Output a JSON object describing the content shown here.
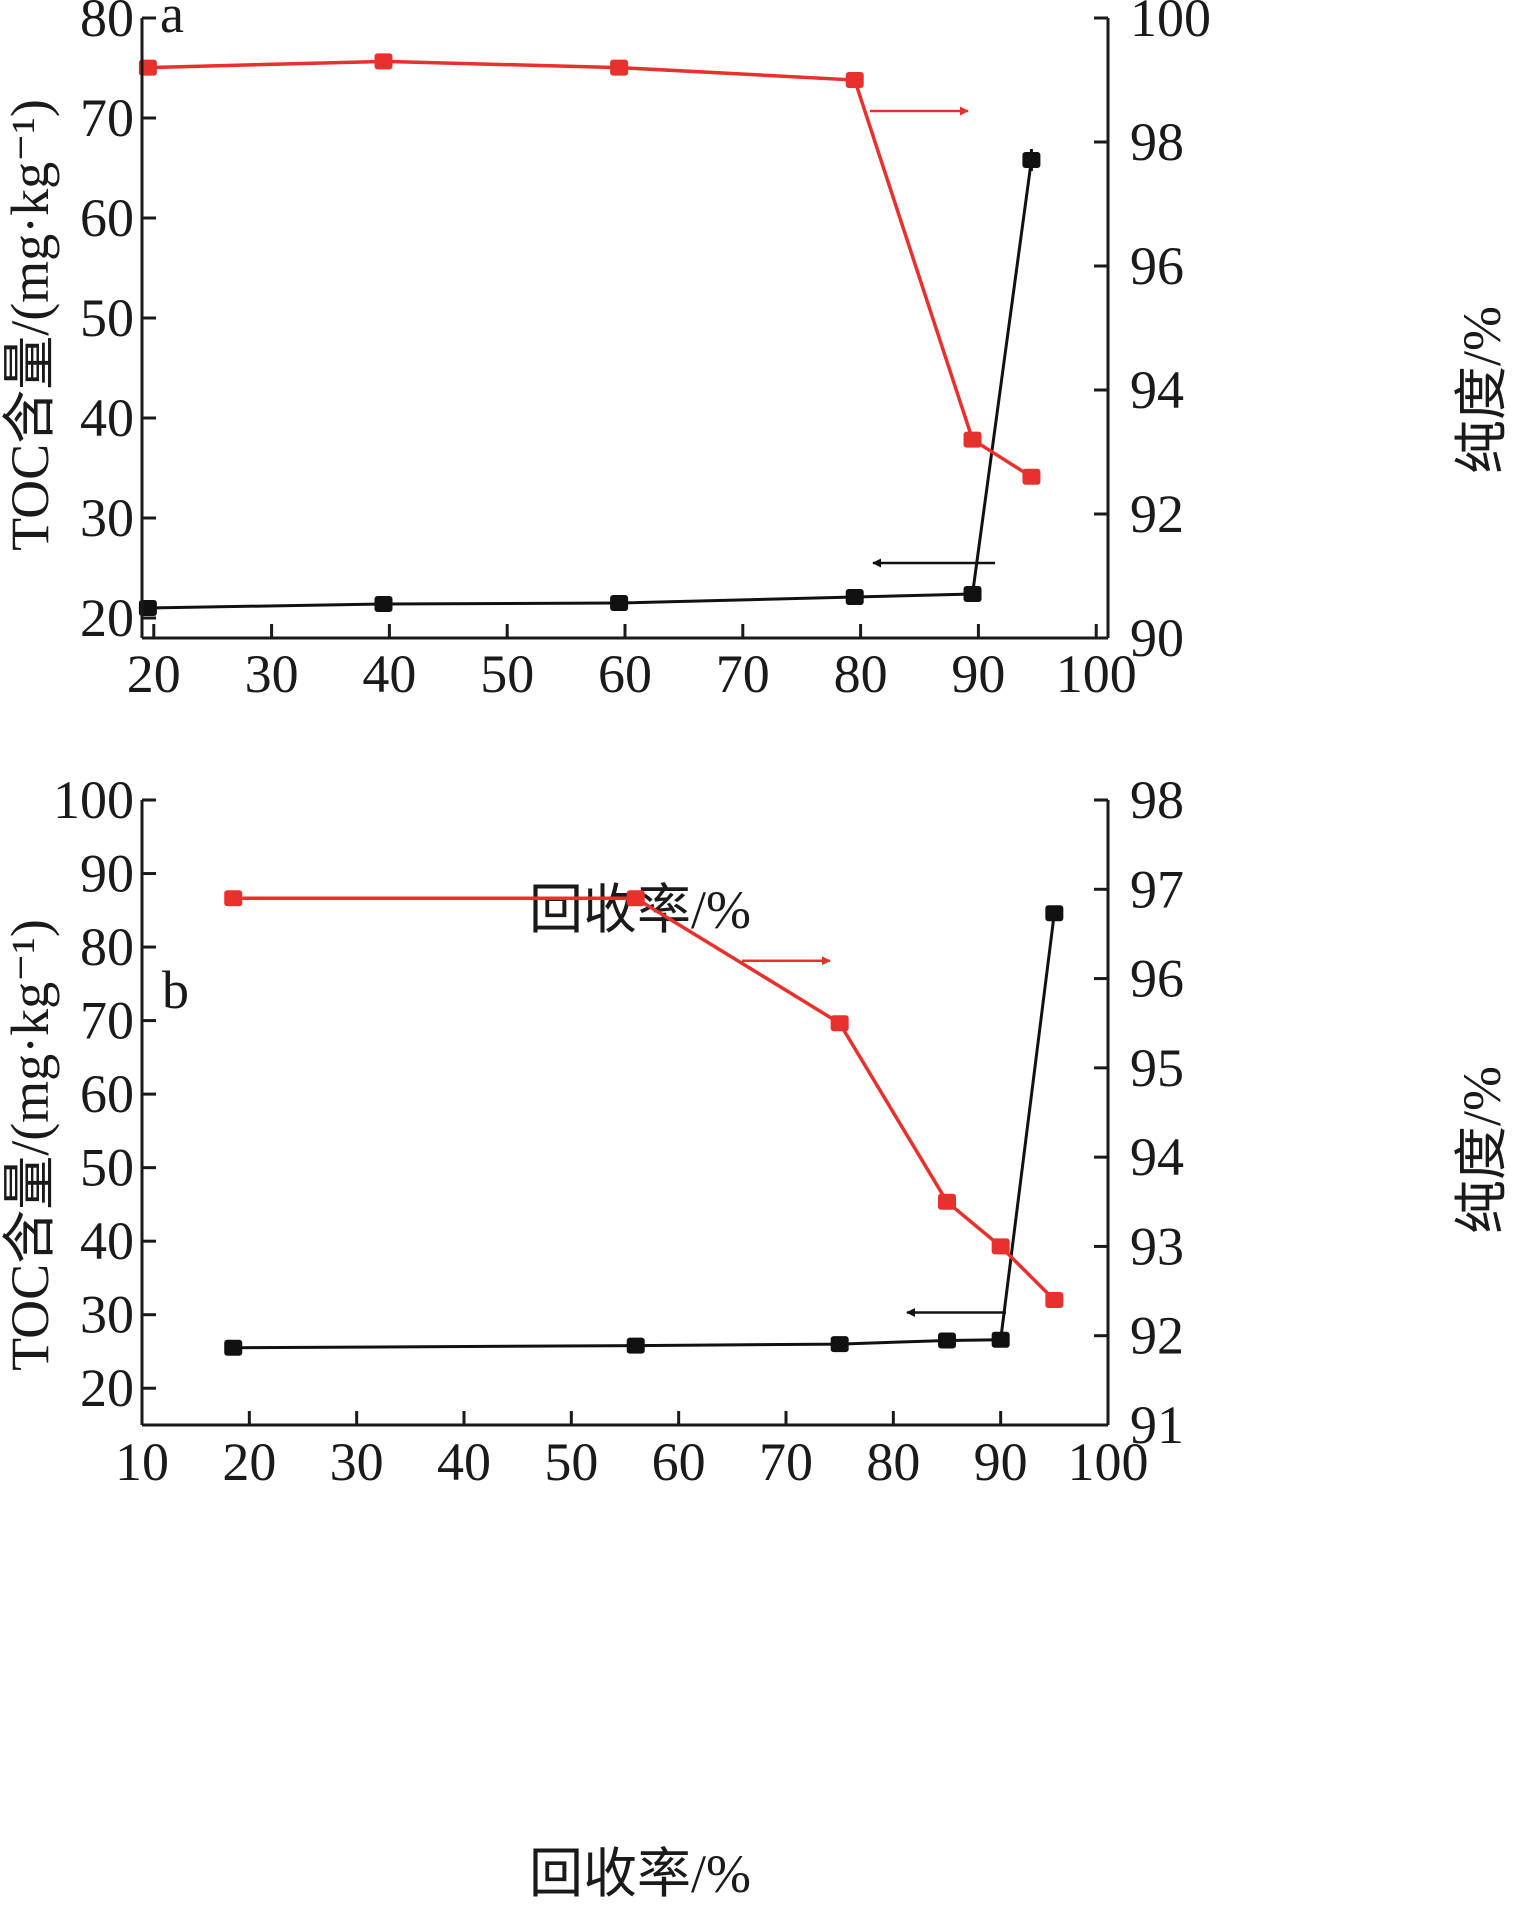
{
  "chart_data": [
    {
      "type": "line",
      "panel_label": "a",
      "xlabel": "回收率/%",
      "ylabel_left": "TOC含量/(mg·kg⁻¹)",
      "ylabel_right": "纯度/%",
      "xlim": [
        19,
        101
      ],
      "xticks": [
        "20",
        "30",
        "40",
        "50",
        "60",
        "70",
        "80",
        "90",
        "100"
      ],
      "ylim_left": [
        18,
        80
      ],
      "yticks_left": [
        "20",
        "30",
        "40",
        "50",
        "60",
        "70",
        "80"
      ],
      "ylim_right": [
        90,
        100
      ],
      "yticks_right": [
        "90",
        "92",
        "94",
        "96",
        "98",
        "100"
      ],
      "series": [
        {
          "axis": "left",
          "color": "#111111",
          "x": [
            19.5,
            39.5,
            59.5,
            79.5,
            89.5,
            94.5
          ],
          "y": [
            21.0,
            21.4,
            21.5,
            22.1,
            22.4,
            65.8
          ]
        },
        {
          "axis": "right",
          "color": "#e8302c",
          "x": [
            19.5,
            39.5,
            59.5,
            79.5,
            89.5,
            94.5
          ],
          "y": [
            99.2,
            99.3,
            99.2,
            99.0,
            93.2,
            92.6
          ]
        }
      ],
      "annotations": [
        {
          "type": "arrow",
          "direction": "right",
          "series": "purity"
        },
        {
          "type": "arrow",
          "direction": "left",
          "series": "toc"
        }
      ]
    },
    {
      "type": "line",
      "panel_label": "b",
      "xlabel": "回收率/%",
      "ylabel_left": "TOC含量/(mg·kg⁻¹)",
      "ylabel_right": "纯度/%",
      "xlim": [
        10,
        100
      ],
      "xticks": [
        "10",
        "20",
        "30",
        "40",
        "50",
        "60",
        "70",
        "80",
        "90",
        "100"
      ],
      "ylim_left": [
        15,
        100
      ],
      "yticks_left": [
        "20",
        "30",
        "40",
        "50",
        "60",
        "70",
        "80",
        "90",
        "100"
      ],
      "ylim_right": [
        91,
        98
      ],
      "yticks_right": [
        "91",
        "92",
        "93",
        "94",
        "95",
        "96",
        "97",
        "98"
      ],
      "series": [
        {
          "axis": "left",
          "color": "#111111",
          "x": [
            18.5,
            56,
            75,
            85,
            90,
            95
          ],
          "y": [
            25.5,
            25.8,
            26.0,
            26.5,
            26.6,
            84.6
          ]
        },
        {
          "axis": "right",
          "color": "#e8302c",
          "x": [
            18.5,
            56,
            75,
            85,
            90,
            95
          ],
          "y": [
            96.9,
            96.9,
            95.5,
            93.5,
            93.0,
            92.4
          ]
        }
      ],
      "annotations": [
        {
          "type": "arrow",
          "direction": "right",
          "series": "purity"
        },
        {
          "type": "arrow",
          "direction": "left",
          "series": "toc"
        }
      ]
    }
  ]
}
